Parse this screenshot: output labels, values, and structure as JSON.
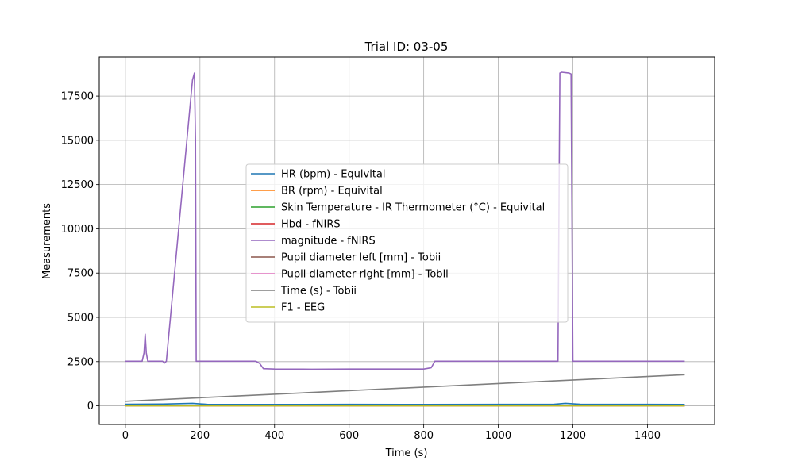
{
  "chart_data": {
    "type": "line",
    "title": "Trial ID: 03-05",
    "xlabel": "Time (s)",
    "ylabel": "Measurements",
    "xlim": [
      -70,
      1580
    ],
    "ylim": [
      -1050,
      19700
    ],
    "xticks": [
      0,
      200,
      400,
      600,
      800,
      1000,
      1200,
      1400
    ],
    "yticks": [
      0,
      2500,
      5000,
      7500,
      10000,
      12500,
      15000,
      17500
    ],
    "grid": true,
    "legend_position": "center",
    "series": [
      {
        "name": "HR (bpm) - Equivital",
        "color": "#1f77b4",
        "x": [
          0,
          100,
          180,
          220,
          400,
          600,
          800,
          1000,
          1150,
          1180,
          1220,
          1400,
          1500
        ],
        "y": [
          90,
          100,
          140,
          85,
          80,
          85,
          80,
          85,
          90,
          140,
          90,
          85,
          80
        ]
      },
      {
        "name": "BR (rpm) - Equivital",
        "color": "#ff7f0e",
        "x": [
          0,
          1500
        ],
        "y": [
          15,
          15
        ]
      },
      {
        "name": "Skin Temperature - IR Thermometer (°C) - Equivital",
        "color": "#2ca02c",
        "x": [
          0,
          1500
        ],
        "y": [
          33,
          33
        ]
      },
      {
        "name": "Hbd - fNIRS",
        "color": "#d62728",
        "x": [
          0,
          1500
        ],
        "y": [
          0,
          0
        ]
      },
      {
        "name": "magnitude - fNIRS",
        "color": "#9467bd",
        "x": [
          0,
          45,
          50,
          53,
          56,
          60,
          65,
          100,
          105,
          110,
          180,
          185,
          188,
          190,
          200,
          300,
          350,
          360,
          370,
          400,
          500,
          600,
          700,
          800,
          820,
          830,
          1000,
          1150,
          1160,
          1165,
          1170,
          1190,
          1195,
          1200,
          1210,
          1400,
          1500
        ],
        "y": [
          2520,
          2520,
          3000,
          4050,
          3000,
          2520,
          2520,
          2520,
          2420,
          2520,
          18400,
          18800,
          15000,
          2520,
          2520,
          2520,
          2520,
          2400,
          2100,
          2080,
          2070,
          2080,
          2080,
          2080,
          2150,
          2520,
          2520,
          2520,
          2520,
          18800,
          18850,
          18800,
          18750,
          2520,
          2520,
          2520,
          2520
        ]
      },
      {
        "name": "Pupil diameter left [mm] - Tobii",
        "color": "#8c564b",
        "x": [
          0,
          1500
        ],
        "y": [
          4,
          4
        ]
      },
      {
        "name": "Pupil diameter right [mm] - Tobii",
        "color": "#e377c2",
        "x": [
          0,
          1500
        ],
        "y": [
          4,
          4
        ]
      },
      {
        "name": "Time (s) - Tobii",
        "color": "#7f7f7f",
        "x": [
          0,
          1500
        ],
        "y": [
          260,
          1760
        ]
      },
      {
        "name": "F1 - EEG",
        "color": "#bcbd22",
        "x": [
          0,
          1500
        ],
        "y": [
          0,
          0
        ]
      }
    ]
  }
}
